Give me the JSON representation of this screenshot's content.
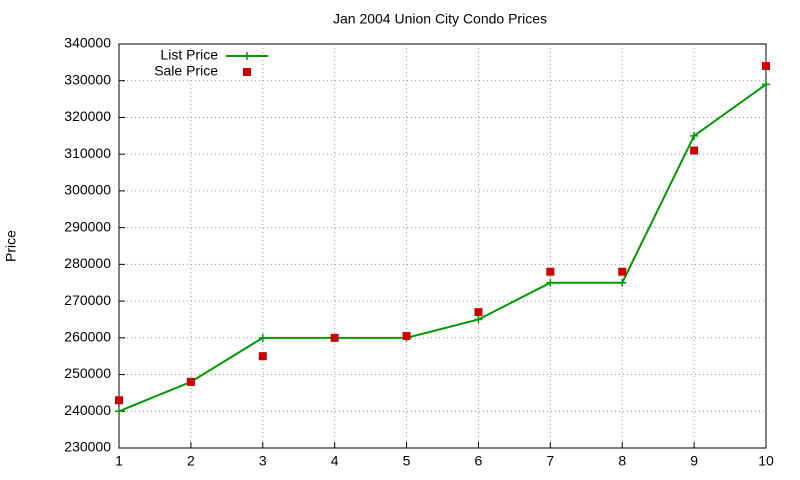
{
  "chart_data": {
    "type": "line",
    "title": "Jan 2004 Union City Condo Prices",
    "ylabel": "Price",
    "x": [
      1,
      2,
      3,
      4,
      5,
      6,
      7,
      8,
      9,
      10
    ],
    "series": [
      {
        "name": "List Price",
        "color": "#009900",
        "line": true,
        "marker": "plus",
        "values": [
          240000,
          248000,
          260000,
          260000,
          260000,
          265000,
          275000,
          275000,
          315000,
          329000
        ]
      },
      {
        "name": "Sale Price",
        "color": "#cc0000",
        "line": false,
        "marker": "square",
        "values": [
          243000,
          248000,
          255000,
          260000,
          260500,
          267000,
          278000,
          278000,
          311000,
          334000
        ]
      }
    ],
    "xlim": [
      1,
      10
    ],
    "xticks": [
      1,
      2,
      3,
      4,
      5,
      6,
      7,
      8,
      9,
      10
    ],
    "ylim": [
      230000,
      340000
    ],
    "yticks": [
      230000,
      240000,
      250000,
      260000,
      270000,
      280000,
      290000,
      300000,
      310000,
      320000,
      330000,
      340000
    ],
    "grid": true,
    "legend": "top-left"
  }
}
